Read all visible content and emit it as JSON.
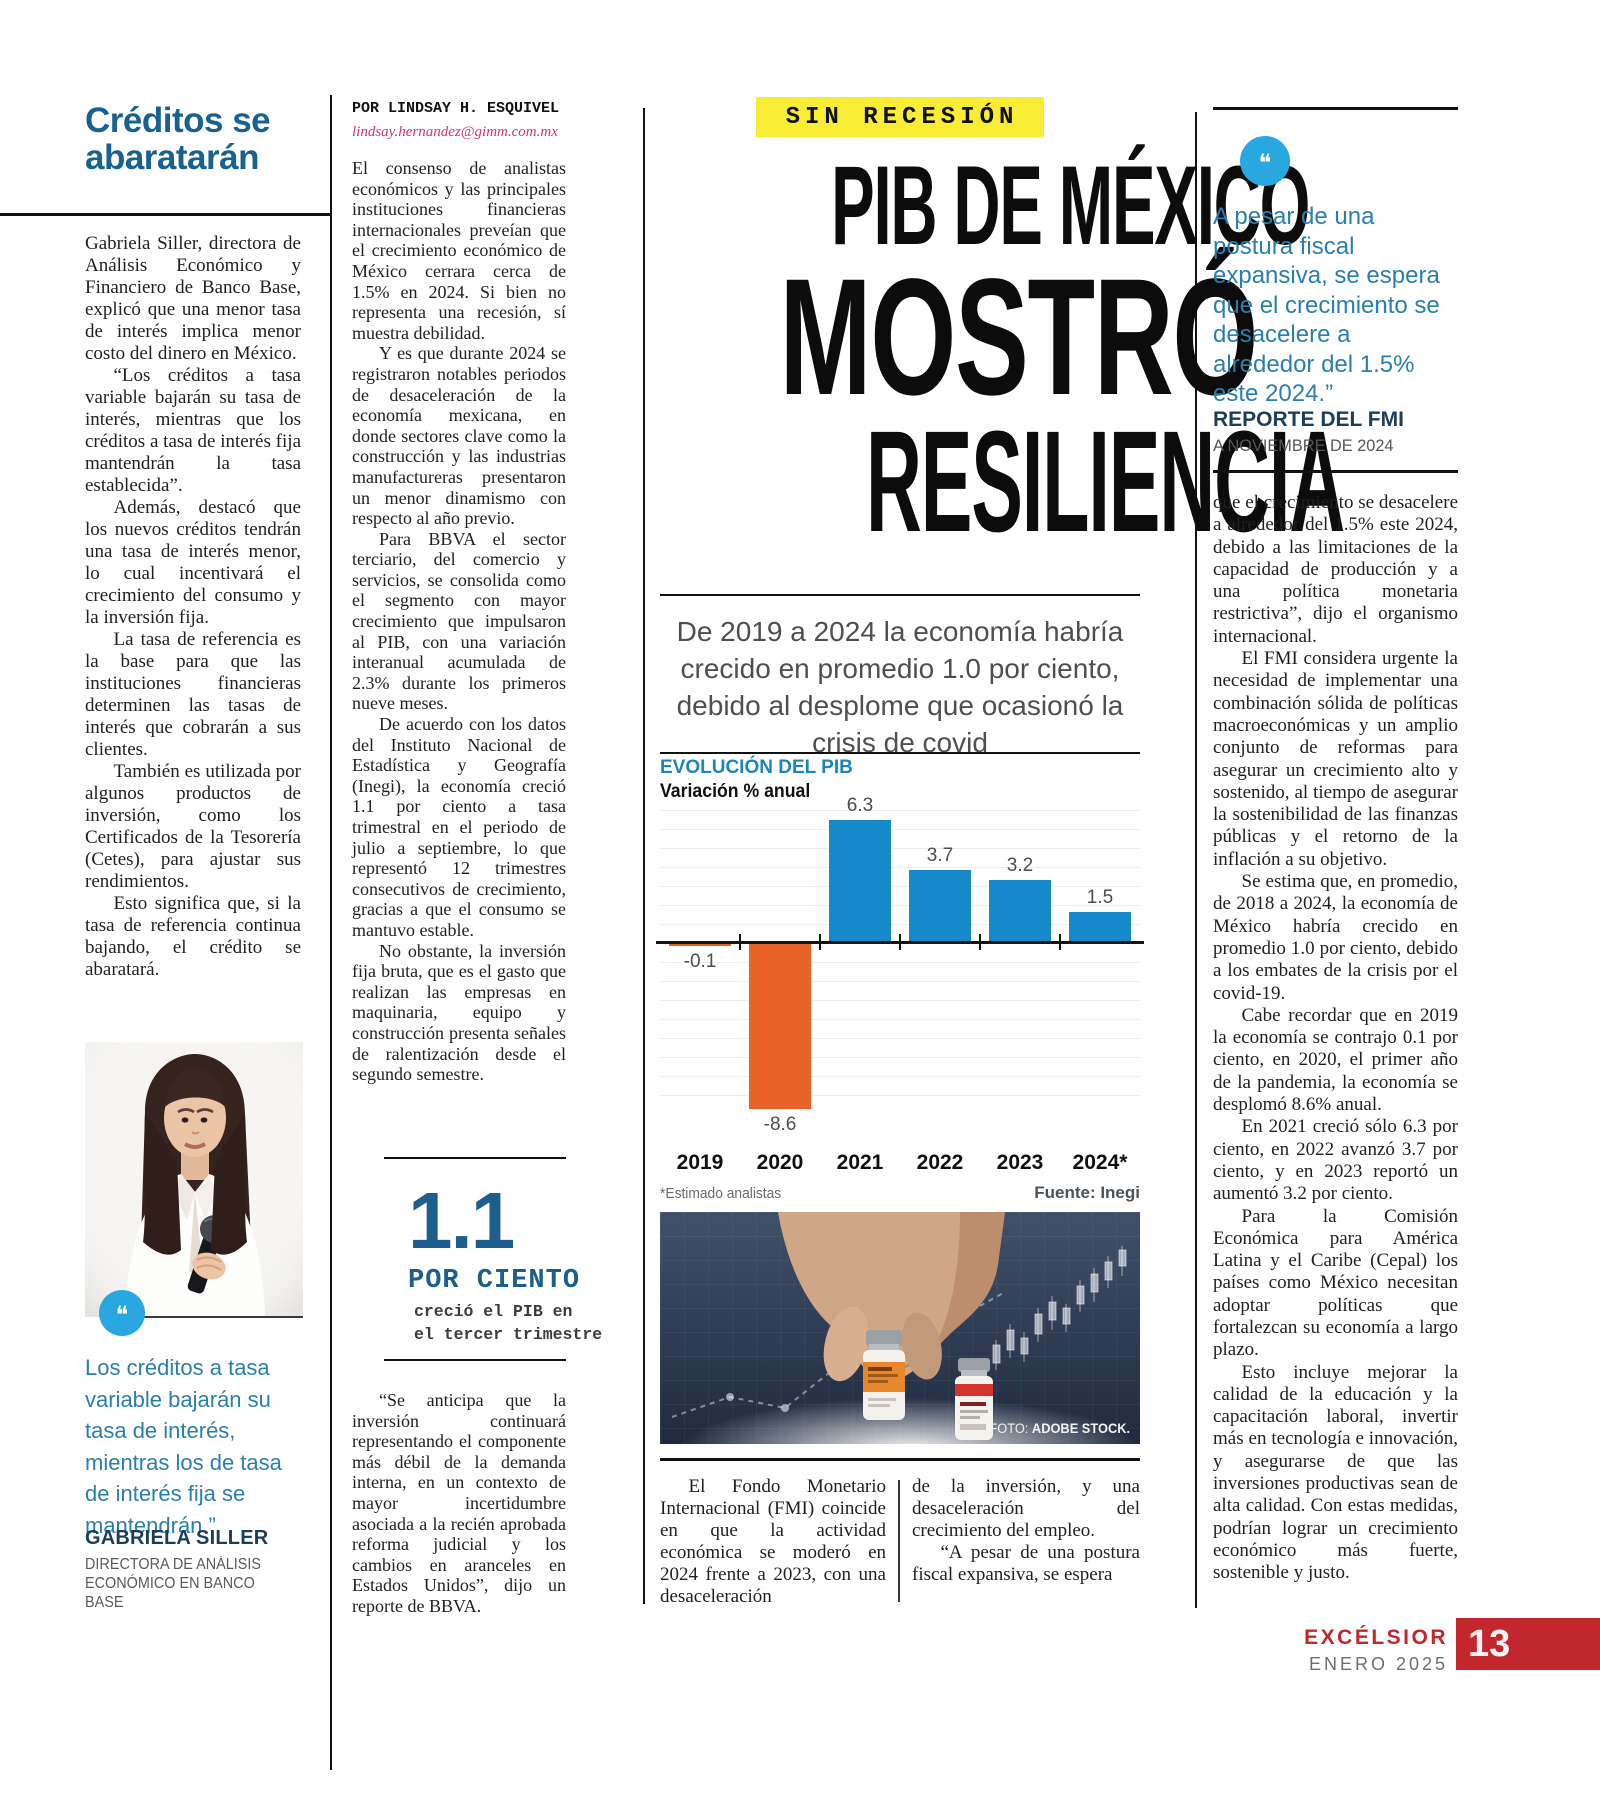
{
  "left": {
    "title": "Créditos se abaratarán",
    "paragraphs": [
      "Gabriela Siller, directora de Análisis Económico y Financiero de Banco Base, explicó que una menor tasa de interés implica menor costo del dinero en México.",
      "“Los créditos a tasa variable bajarán su tasa de interés, mientras que los créditos a tasa de interés fija mantendrán la tasa establecida”.",
      "Además, destacó que los nuevos créditos tendrán una tasa de interés menor, lo cual incentivará el crecimiento del consumo y la inversión fija.",
      "La tasa de referencia es la base para que las instituciones financieras determinen las tasas de interés que cobrarán a sus clientes.",
      "También es utilizada por algunos productos de inversión, como los Certificados de la Tesorería (Cetes), para ajustar sus rendimientos.",
      "Esto significa que, si la tasa de referencia continua bajando, el crédito se abaratará."
    ],
    "quote": "Los créditos a tasa variable bajarán su tasa de interés, mientras los de tasa de interés fija se mantendrán.”",
    "quote_author": "GABRIELA SILLER",
    "quote_role": "DIRECTORA DE ANÁLISIS ECONÓMICO EN BANCO BASE"
  },
  "byline": {
    "author": "POR LINDSAY H. ESQUIVEL",
    "email": "lindsay.hernandez@gimm.com.mx"
  },
  "col2": {
    "paragraphs": [
      "El consenso de analistas económicos y las principales instituciones financieras internacionales preveían que el crecimiento económico de México cerrara cerca de 1.5% en 2024. Si bien no representa una recesión, sí muestra debilidad.",
      "Y es que durante 2024 se registraron notables periodos de desaceleración de la economía mexicana, en donde sectores clave como la construcción y las industrias manufactureras presentaron un menor dinamismo con respecto al año previo.",
      "Para BBVA el sector terciario, del comercio y servicios, se consolida como el segmento con mayor crecimiento que impulsaron al PIB, con una variación interanual acumulada de 2.3% durante los primeros nueve meses.",
      "De acuerdo con los datos del Instituto Nacional de Estadística y Geografía (Inegi), la economía creció 1.1 por ciento a tasa trimestral en el periodo de julio a septiembre, lo que representó 12 trimestres consecutivos de crecimiento, gracias a que el consumo se mantuvo estable.",
      "No obstante, la inversión fija bruta, que es el gasto que realizan las empresas en maquinaria, equipo y construcción presenta señales de ralentización desde el segundo semestre."
    ],
    "quote_paragraph": "“Se anticipa que la inversión continuará representando el componente más débil de la demanda interna, en un contexto de mayor incertidumbre asociada a la recién aprobada reforma judicial y los cambios en aranceles en Estados Unidos”, dijo un reporte de BBVA."
  },
  "stat": {
    "value": "1.1",
    "unit": "POR CIENTO",
    "desc_line1": "creció el PIB en",
    "desc_line2": "el tercer trimestre"
  },
  "headline": {
    "kicker": "SIN RECESIÓN",
    "line1": "PIB DE MÉXICO",
    "line2": "MOSTRÓ",
    "line3": "RESILIENCIA",
    "deck": "De 2019 a 2024 la economía habría crecido en promedio 1.0 por ciento, debido al desplome que ocasionó la crisis de covid"
  },
  "chart_data": {
    "type": "bar",
    "title": "EVOLUCIÓN DEL PIB",
    "subtitle": "Variación % anual",
    "categories": [
      "2019",
      "2020",
      "2021",
      "2022",
      "2023",
      "2024*"
    ],
    "values": [
      -0.1,
      -8.6,
      6.3,
      3.7,
      3.2,
      1.5
    ],
    "labels": [
      "-0.1",
      "-8.6",
      "6.3",
      "3.7",
      "3.2",
      "1.5"
    ],
    "footnote": "*Estimado analistas",
    "source": "Fuente: Inegi",
    "positive_color": "#1689ca",
    "negative_color": "#e96228",
    "ylim": [
      -9,
      7
    ],
    "grid": true,
    "legend": "none"
  },
  "photo": {
    "credit_label": "FOTO: ",
    "credit": "ADOBE STOCK."
  },
  "bottom": {
    "col_a_paragraphs": [
      "El Fondo Monetario Internacional (FMI) coincide en que la actividad económica se moderó en 2024 frente a 2023, con una desaceleración"
    ],
    "col_b_paragraphs": [
      "de la inversión, y una desaceleración del crecimiento del empleo.",
      "“A pesar de una postura fiscal expansiva, se espera"
    ]
  },
  "right": {
    "quote": "A pesar de una postura fiscal expansiva, se espera que el crecimiento se desacelere a alrededor del 1.5% este 2024.”",
    "source": "REPORTE DEL FMI",
    "source_date": "A NOVIEMBRE DE 2024",
    "paragraphs": [
      "que el crecimiento se desacelere a alrededor del 1.5% este 2024, debido a las limitaciones de la capacidad de producción y a una política monetaria restrictiva”, dijo el organismo internacional.",
      "El FMI considera urgente la necesidad de implementar una combinación sólida de políticas macroeconómicas y un amplio conjunto de reformas para asegurar un crecimiento alto y sostenido, al tiempo de asegurar la sostenibilidad de las finanzas públicas y el retorno de la inflación a su objetivo.",
      "Se estima que, en promedio, de 2018 a 2024, la economía de México habría crecido en promedio 1.0 por ciento, debido a los embates de la crisis por el covid-19.",
      "Cabe recordar que en 2019 la economía se contrajo 0.1 por ciento, en 2020, el primer año de la pandemia, la economía se desplomó 8.6% anual.",
      "En 2021 creció sólo 6.3 por ciento, en 2022 avanzó 3.7 por ciento, y en 2023 reportó un aumentó 3.2 por ciento.",
      "Para la Comisión Económica para América Latina y el Caribe (Cepal) los países como México necesitan adoptar políticas que fortalezcan su economía a largo plazo.",
      "Esto incluye mejorar la calidad de la educación y la capacitación laboral, invertir más en tecnología e innovación, y asegurarse de que las inversiones productivas sean de alta calidad. Con estas medidas, podrían lograr un crecimiento económico más fuerte, sostenible y justo."
    ]
  },
  "footer": {
    "brand": "EXCÉLSIOR",
    "date": "ENERO 2025",
    "page_number": "13"
  },
  "colors": {
    "accent_blue": "#19618f",
    "quote_blue": "#2b7fae",
    "icon_blue": "#29a7e0",
    "stat_blue": "#1d5e8d",
    "chart_blue": "#1689ca",
    "chart_orange": "#e96228",
    "kicker_yellow": "#f8ec35",
    "footer_red": "#c1272d",
    "email_pink": "#d2356b"
  }
}
